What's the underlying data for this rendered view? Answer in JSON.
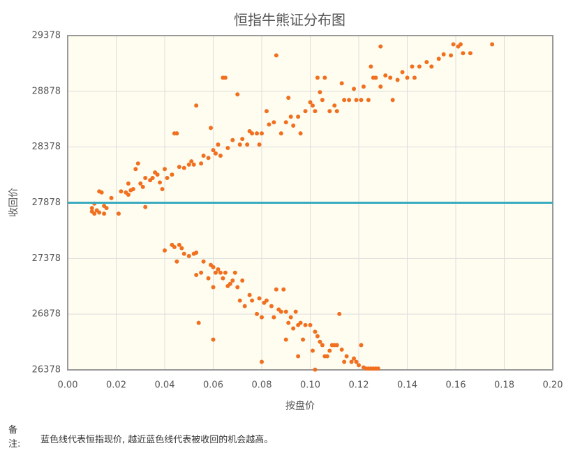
{
  "chart_data": {
    "type": "scatter",
    "title": "恒指牛熊证分布图",
    "xlabel": "按盘价",
    "ylabel": "收回价",
    "xlim": [
      0,
      0.2
    ],
    "ylim": [
      26378,
      29378
    ],
    "xticks": [
      {
        "value": 0,
        "label": "0.00"
      },
      {
        "value": 0.02,
        "label": "0.02"
      },
      {
        "value": 0.04,
        "label": "0.04"
      },
      {
        "value": 0.06,
        "label": "0.06"
      },
      {
        "value": 0.08,
        "label": "0.08"
      },
      {
        "value": 0.1,
        "label": "0.10"
      },
      {
        "value": 0.12,
        "label": "0.12"
      },
      {
        "value": 0.14,
        "label": "0.14"
      },
      {
        "value": 0.16,
        "label": "0.16"
      },
      {
        "value": 0.18,
        "label": "0.18"
      },
      {
        "value": 0.2,
        "label": "0.20"
      }
    ],
    "yticks": [
      26378,
      26878,
      27378,
      27878,
      28378,
      28878,
      29378
    ],
    "grid": true,
    "hline": {
      "value": 27878,
      "color": "#3aabbf"
    },
    "series": [
      {
        "color": "#f07020",
        "x": [
          0.01,
          0.01,
          0.011,
          0.011,
          0.012,
          0.013,
          0.013,
          0.014,
          0.015,
          0.015,
          0.016,
          0.018,
          0.021,
          0.022,
          0.024,
          0.025,
          0.025,
          0.026,
          0.027,
          0.028,
          0.029,
          0.03,
          0.031,
          0.032,
          0.032,
          0.034,
          0.035,
          0.036,
          0.037,
          0.038,
          0.039,
          0.04,
          0.041,
          0.043,
          0.044,
          0.045,
          0.046,
          0.048,
          0.05,
          0.051,
          0.052,
          0.053,
          0.055,
          0.056,
          0.058,
          0.059,
          0.06,
          0.061,
          0.062,
          0.063,
          0.064,
          0.065,
          0.066,
          0.068,
          0.07,
          0.071,
          0.072,
          0.074,
          0.075,
          0.076,
          0.078,
          0.079,
          0.08,
          0.082,
          0.083,
          0.085,
          0.086,
          0.088,
          0.09,
          0.091,
          0.092,
          0.093,
          0.095,
          0.096,
          0.098,
          0.1,
          0.101,
          0.102,
          0.103,
          0.104,
          0.105,
          0.106,
          0.108,
          0.11,
          0.111,
          0.113,
          0.114,
          0.116,
          0.118,
          0.119,
          0.121,
          0.122,
          0.124,
          0.125,
          0.126,
          0.127,
          0.129,
          0.129,
          0.131,
          0.133,
          0.134,
          0.136,
          0.138,
          0.14,
          0.142,
          0.143,
          0.145,
          0.148,
          0.15,
          0.153,
          0.155,
          0.158,
          0.159,
          0.161,
          0.162,
          0.163,
          0.166,
          0.175,
          0.04,
          0.043,
          0.044,
          0.045,
          0.046,
          0.047,
          0.048,
          0.05,
          0.052,
          0.053,
          0.053,
          0.054,
          0.055,
          0.056,
          0.058,
          0.059,
          0.06,
          0.06,
          0.061,
          0.062,
          0.063,
          0.064,
          0.065,
          0.066,
          0.067,
          0.068,
          0.069,
          0.07,
          0.071,
          0.072,
          0.073,
          0.075,
          0.076,
          0.078,
          0.079,
          0.08,
          0.081,
          0.082,
          0.084,
          0.085,
          0.086,
          0.087,
          0.088,
          0.089,
          0.09,
          0.091,
          0.092,
          0.093,
          0.094,
          0.095,
          0.096,
          0.097,
          0.098,
          0.1,
          0.101,
          0.102,
          0.103,
          0.104,
          0.105,
          0.106,
          0.107,
          0.108,
          0.109,
          0.11,
          0.111,
          0.112,
          0.113,
          0.114,
          0.115,
          0.117,
          0.118,
          0.119,
          0.12,
          0.121,
          0.122,
          0.123,
          0.124,
          0.125,
          0.126,
          0.127,
          0.128,
          0.06,
          0.08,
          0.09,
          0.095,
          0.102
        ],
        "y": [
          27800,
          27830,
          27870,
          27780,
          27810,
          27790,
          27980,
          27970,
          27850,
          27780,
          27830,
          27920,
          27780,
          27980,
          27970,
          27950,
          28050,
          27990,
          28000,
          28180,
          28230,
          28050,
          28020,
          28100,
          27840,
          28080,
          28100,
          28150,
          28130,
          28060,
          28000,
          28180,
          28100,
          28130,
          28500,
          28500,
          28200,
          28190,
          28220,
          28250,
          28220,
          28750,
          28230,
          28300,
          28280,
          28550,
          28350,
          28320,
          28400,
          28300,
          29000,
          29000,
          28370,
          28440,
          28850,
          28400,
          28450,
          28400,
          28520,
          28500,
          28500,
          28400,
          28500,
          28700,
          28580,
          28600,
          29200,
          28500,
          28600,
          28820,
          28650,
          28570,
          28650,
          28500,
          28700,
          28780,
          28750,
          28700,
          29000,
          28870,
          28800,
          29000,
          28700,
          28750,
          28700,
          28950,
          28800,
          28800,
          28900,
          28800,
          28800,
          28920,
          28800,
          29100,
          29000,
          29000,
          29280,
          28920,
          29020,
          29000,
          28800,
          28980,
          29050,
          29000,
          29100,
          29000,
          29100,
          29140,
          29100,
          29170,
          29210,
          29200,
          29300,
          29280,
          29300,
          29220,
          29220,
          29300,
          27450,
          27500,
          27480,
          27350,
          27500,
          27470,
          27420,
          27400,
          27420,
          27430,
          27230,
          26800,
          27250,
          27350,
          27200,
          27320,
          27300,
          27120,
          27250,
          27280,
          27250,
          27200,
          27250,
          27130,
          27150,
          27180,
          27250,
          27120,
          27000,
          27180,
          26950,
          27050,
          27000,
          26880,
          27020,
          26450,
          26980,
          27000,
          26950,
          26850,
          27100,
          26920,
          26900,
          27100,
          26900,
          26800,
          26850,
          26750,
          26900,
          26780,
          26800,
          26650,
          26780,
          26780,
          26550,
          26720,
          26680,
          26630,
          26600,
          26500,
          26500,
          26550,
          26600,
          26600,
          26600,
          26880,
          26560,
          26450,
          26500,
          26450,
          26480,
          26450,
          26420,
          26600,
          26400,
          26390,
          26390,
          26390,
          26390,
          26390,
          26390,
          26650,
          26850,
          26650,
          26500,
          26380
        ]
      }
    ]
  },
  "note": {
    "label": [
      "备",
      "注:"
    ],
    "text": "蓝色线代表恒指现价, 越近蓝色线代表被收回的机会越高。"
  }
}
